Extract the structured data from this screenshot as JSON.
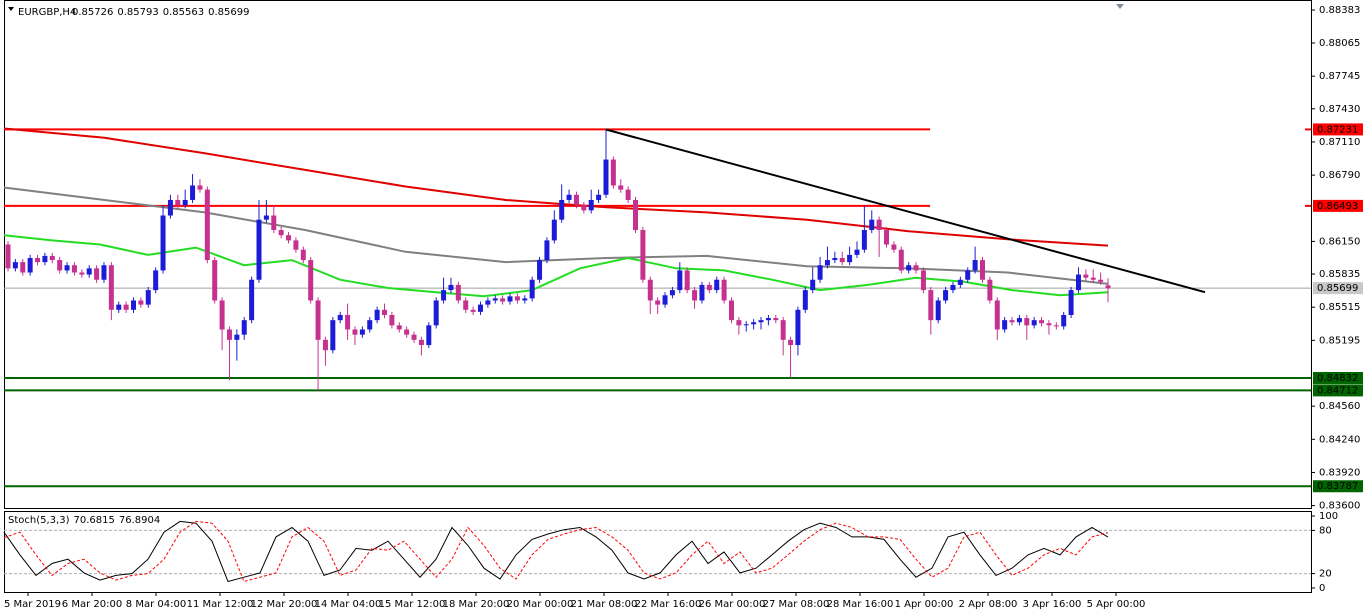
{
  "chart_data": {
    "type": "candlestick",
    "title": "EURGBP,H4",
    "up_color": "#1c1cd8",
    "down_color": "#c6318f",
    "ylim": [
      0.83577,
      0.8848
    ],
    "yticks": [
      0.88383,
      0.88065,
      0.87745,
      {
        "value": 0.8743,
        "label": "0.87430"
      },
      {
        "value": 0.8711,
        "label": "0.87110"
      },
      {
        "value": 0.8679,
        "label": "0.86790"
      },
      {
        "value": 0.8615,
        "label": "0.86150"
      },
      0.85835,
      0.85515,
      0.85195,
      {
        "value": 0.8456,
        "label": "0.84560"
      },
      {
        "value": 0.8424,
        "label": "0.84240"
      },
      {
        "value": 0.8392,
        "label": "0.83920"
      },
      {
        "value": 0.836,
        "label": "0.83600"
      }
    ],
    "categories": [
      "5 Mar 2019",
      "6 Mar 20:00",
      "8 Mar 04:00",
      "11 Mar 12:00",
      "12 Mar 20:00",
      "14 Mar 04:00",
      "15 Mar 12:00",
      "18 Mar 20:00",
      "20 Mar 00:00",
      "21 Mar 08:00",
      "22 Mar 16:00",
      "26 Mar 00:00",
      "27 Mar 08:00",
      "28 Mar 16:00",
      "1 Apr 00:00",
      "2 Apr 08:00",
      "3 Apr 16:00",
      "5 Apr 00:00"
    ],
    "ohlc": [
      [
        0.8612,
        0.8615,
        0.8586,
        0.8589
      ],
      [
        0.8589,
        0.8598,
        0.8586,
        0.8595
      ],
      [
        0.8595,
        0.8598,
        0.8582,
        0.8585
      ],
      [
        0.8585,
        0.8602,
        0.8582,
        0.8599
      ],
      [
        0.8599,
        0.8602,
        0.8592,
        0.8595
      ],
      [
        0.8595,
        0.8604,
        0.8592,
        0.8601
      ],
      [
        0.8601,
        0.8604,
        0.8594,
        0.8597
      ],
      [
        0.8597,
        0.86,
        0.8584,
        0.8587
      ],
      [
        0.8587,
        0.8595,
        0.8584,
        0.8592
      ],
      [
        0.8592,
        0.8595,
        0.8582,
        0.8585
      ],
      [
        0.8585,
        0.8588,
        0.858,
        0.8583
      ],
      [
        0.8583,
        0.8592,
        0.858,
        0.8589
      ],
      [
        0.8589,
        0.8592,
        0.8575,
        0.8578
      ],
      [
        0.8578,
        0.8595,
        0.8575,
        0.8592
      ],
      [
        0.8592,
        0.8595,
        0.8539,
        0.8549
      ],
      [
        0.8549,
        0.8557,
        0.8546,
        0.8554
      ],
      [
        0.8554,
        0.8557,
        0.8546,
        0.8549
      ],
      [
        0.8549,
        0.8561,
        0.8546,
        0.8558
      ],
      [
        0.8558,
        0.8561,
        0.8551,
        0.8554
      ],
      [
        0.8554,
        0.8571,
        0.8551,
        0.8568
      ],
      [
        0.8568,
        0.859,
        0.8565,
        0.8587
      ],
      [
        0.8587,
        0.865,
        0.8584,
        0.864
      ],
      [
        0.864,
        0.866,
        0.8637,
        0.8655
      ],
      [
        0.8655,
        0.866,
        0.8647,
        0.865
      ],
      [
        0.865,
        0.8665,
        0.8647,
        0.8655
      ],
      [
        0.8655,
        0.868,
        0.8652,
        0.8669
      ],
      [
        0.8669,
        0.8675,
        0.8662,
        0.8665
      ],
      [
        0.8665,
        0.8668,
        0.8594,
        0.8597
      ],
      [
        0.8597,
        0.86,
        0.8555,
        0.8558
      ],
      [
        0.8558,
        0.8561,
        0.851,
        0.853
      ],
      [
        0.853,
        0.8533,
        0.8481,
        0.852
      ],
      [
        0.852,
        0.853,
        0.85,
        0.8525
      ],
      [
        0.8525,
        0.8542,
        0.852,
        0.8539
      ],
      [
        0.8539,
        0.8581,
        0.8536,
        0.8578
      ],
      [
        0.8578,
        0.8655,
        0.8575,
        0.8636
      ],
      [
        0.8636,
        0.8655,
        0.8633,
        0.864
      ],
      [
        0.864,
        0.865,
        0.8623,
        0.8626
      ],
      [
        0.8626,
        0.8629,
        0.8618,
        0.8621
      ],
      [
        0.8621,
        0.8624,
        0.8613,
        0.8616
      ],
      [
        0.8616,
        0.8619,
        0.8604,
        0.8607
      ],
      [
        0.8607,
        0.861,
        0.8594,
        0.8597
      ],
      [
        0.8597,
        0.86,
        0.8555,
        0.8558
      ],
      [
        0.8558,
        0.8561,
        0.8471,
        0.852
      ],
      [
        0.852,
        0.8523,
        0.8495,
        0.851
      ],
      [
        0.851,
        0.8542,
        0.8507,
        0.8539
      ],
      [
        0.8539,
        0.8547,
        0.8536,
        0.8544
      ],
      [
        0.8544,
        0.8555,
        0.852,
        0.853
      ],
      [
        0.853,
        0.8533,
        0.8515,
        0.8525
      ],
      [
        0.8525,
        0.8533,
        0.8522,
        0.853
      ],
      [
        0.853,
        0.8542,
        0.8527,
        0.8539
      ],
      [
        0.8539,
        0.8552,
        0.8536,
        0.8549
      ],
      [
        0.8549,
        0.8555,
        0.8541,
        0.8544
      ],
      [
        0.8544,
        0.8547,
        0.8531,
        0.8534
      ],
      [
        0.8534,
        0.8537,
        0.8527,
        0.853
      ],
      [
        0.853,
        0.8533,
        0.8522,
        0.8525
      ],
      [
        0.8525,
        0.8528,
        0.8517,
        0.852
      ],
      [
        0.852,
        0.8523,
        0.8505,
        0.8515
      ],
      [
        0.8515,
        0.8537,
        0.8512,
        0.8534
      ],
      [
        0.8534,
        0.8561,
        0.8531,
        0.8558
      ],
      [
        0.8558,
        0.858,
        0.8555,
        0.8568
      ],
      [
        0.8568,
        0.858,
        0.8565,
        0.8573
      ],
      [
        0.8573,
        0.8576,
        0.8555,
        0.8558
      ],
      [
        0.8558,
        0.8561,
        0.8546,
        0.8549
      ],
      [
        0.8549,
        0.8552,
        0.8544,
        0.8547
      ],
      [
        0.8547,
        0.8557,
        0.8544,
        0.8554
      ],
      [
        0.8554,
        0.8561,
        0.8551,
        0.8558
      ],
      [
        0.8558,
        0.8563,
        0.8555,
        0.856
      ],
      [
        0.856,
        0.8563,
        0.8554,
        0.8557
      ],
      [
        0.8557,
        0.8565,
        0.8554,
        0.8562
      ],
      [
        0.8562,
        0.8565,
        0.8555,
        0.8558
      ],
      [
        0.8558,
        0.8563,
        0.8555,
        0.856
      ],
      [
        0.856,
        0.8581,
        0.8557,
        0.8578
      ],
      [
        0.8578,
        0.86,
        0.8575,
        0.8597
      ],
      [
        0.8597,
        0.8619,
        0.8594,
        0.8616
      ],
      [
        0.8616,
        0.8645,
        0.8613,
        0.8636
      ],
      [
        0.8636,
        0.867,
        0.8633,
        0.8655
      ],
      [
        0.8655,
        0.8665,
        0.8652,
        0.866
      ],
      [
        0.866,
        0.8663,
        0.8647,
        0.865
      ],
      [
        0.865,
        0.8653,
        0.8642,
        0.8645
      ],
      [
        0.8645,
        0.8665,
        0.8642,
        0.8655
      ],
      [
        0.8655,
        0.8665,
        0.8652,
        0.866
      ],
      [
        0.866,
        0.8723,
        0.8657,
        0.8694
      ],
      [
        0.8694,
        0.8697,
        0.8666,
        0.8669
      ],
      [
        0.8669,
        0.8675,
        0.8662,
        0.8665
      ],
      [
        0.8665,
        0.8668,
        0.8652,
        0.8655
      ],
      [
        0.8655,
        0.8658,
        0.8623,
        0.8626
      ],
      [
        0.8626,
        0.8629,
        0.8575,
        0.8578
      ],
      [
        0.8578,
        0.8581,
        0.8545,
        0.8558
      ],
      [
        0.8558,
        0.8561,
        0.8545,
        0.8554
      ],
      [
        0.8554,
        0.8566,
        0.8551,
        0.8563
      ],
      [
        0.8563,
        0.8571,
        0.856,
        0.8568
      ],
      [
        0.8568,
        0.8595,
        0.8565,
        0.8587
      ],
      [
        0.8587,
        0.859,
        0.8565,
        0.8568
      ],
      [
        0.8568,
        0.8571,
        0.855,
        0.8558
      ],
      [
        0.8558,
        0.8576,
        0.8555,
        0.8573
      ],
      [
        0.8573,
        0.8576,
        0.8565,
        0.8568
      ],
      [
        0.8568,
        0.8581,
        0.8565,
        0.8578
      ],
      [
        0.8578,
        0.8581,
        0.8555,
        0.8558
      ],
      [
        0.8558,
        0.8561,
        0.8536,
        0.8539
      ],
      [
        0.8539,
        0.8542,
        0.8525,
        0.8534
      ],
      [
        0.8534,
        0.8538,
        0.8528,
        0.8535
      ],
      [
        0.8535,
        0.854,
        0.853,
        0.8537
      ],
      [
        0.8537,
        0.8542,
        0.853,
        0.8539
      ],
      [
        0.8539,
        0.8544,
        0.8534,
        0.8541
      ],
      [
        0.8541,
        0.8544,
        0.8536,
        0.8539
      ],
      [
        0.8539,
        0.8542,
        0.8505,
        0.852
      ],
      [
        0.852,
        0.8523,
        0.8483,
        0.8515
      ],
      [
        0.8515,
        0.8552,
        0.8505,
        0.8549
      ],
      [
        0.8549,
        0.8571,
        0.8546,
        0.8568
      ],
      [
        0.8568,
        0.859,
        0.8565,
        0.8578
      ],
      [
        0.8578,
        0.86,
        0.8575,
        0.8592
      ],
      [
        0.8592,
        0.861,
        0.8589,
        0.8597
      ],
      [
        0.8597,
        0.8605,
        0.8594,
        0.8599
      ],
      [
        0.8599,
        0.8605,
        0.8592,
        0.8595
      ],
      [
        0.8595,
        0.861,
        0.8592,
        0.8602
      ],
      [
        0.8602,
        0.8615,
        0.8599,
        0.8607
      ],
      [
        0.8607,
        0.865,
        0.8604,
        0.8626
      ],
      [
        0.8626,
        0.8645,
        0.8623,
        0.8636
      ],
      [
        0.8636,
        0.8639,
        0.86,
        0.8626
      ],
      [
        0.8626,
        0.8629,
        0.8609,
        0.8612
      ],
      [
        0.8612,
        0.8615,
        0.8604,
        0.8607
      ],
      [
        0.8607,
        0.861,
        0.8584,
        0.8587
      ],
      [
        0.8587,
        0.8595,
        0.8584,
        0.8592
      ],
      [
        0.8592,
        0.8595,
        0.8584,
        0.8587
      ],
      [
        0.8587,
        0.859,
        0.8565,
        0.8568
      ],
      [
        0.8568,
        0.8571,
        0.8525,
        0.8539
      ],
      [
        0.8539,
        0.8561,
        0.8536,
        0.8558
      ],
      [
        0.8558,
        0.8571,
        0.8555,
        0.8568
      ],
      [
        0.8568,
        0.8576,
        0.8565,
        0.8573
      ],
      [
        0.8573,
        0.8581,
        0.857,
        0.8578
      ],
      [
        0.8578,
        0.859,
        0.8575,
        0.8587
      ],
      [
        0.8587,
        0.861,
        0.8584,
        0.8597
      ],
      [
        0.8597,
        0.86,
        0.8575,
        0.8578
      ],
      [
        0.8578,
        0.8581,
        0.8555,
        0.8558
      ],
      [
        0.8558,
        0.8561,
        0.852,
        0.853
      ],
      [
        0.853,
        0.8542,
        0.8527,
        0.8539
      ],
      [
        0.8539,
        0.8542,
        0.8534,
        0.8537
      ],
      [
        0.8537,
        0.8544,
        0.8534,
        0.8541
      ],
      [
        0.8541,
        0.8544,
        0.852,
        0.8534
      ],
      [
        0.8534,
        0.8542,
        0.8531,
        0.8539
      ],
      [
        0.8539,
        0.8542,
        0.8533,
        0.8536
      ],
      [
        0.8536,
        0.8539,
        0.8525,
        0.8534
      ],
      [
        0.8534,
        0.8537,
        0.853,
        0.8533
      ],
      [
        0.8533,
        0.8547,
        0.853,
        0.8544
      ],
      [
        0.8544,
        0.8571,
        0.8541,
        0.8568
      ],
      [
        0.8568,
        0.859,
        0.8565,
        0.8583
      ],
      [
        0.8583,
        0.8588,
        0.8577,
        0.858
      ],
      [
        0.858,
        0.8588,
        0.8575,
        0.8578
      ],
      [
        0.8578,
        0.8585,
        0.8573,
        0.8576
      ],
      [
        0.85726,
        0.85793,
        0.85563,
        0.85699
      ]
    ],
    "moving_averages": [
      {
        "color": "#e00000",
        "values": [
          0.8724,
          0.8715,
          0.87,
          0.8684,
          0.8668,
          0.8655,
          0.8648,
          0.8643,
          0.8636,
          0.8625,
          0.8617,
          0.8611
        ]
      },
      {
        "color": "#808080",
        "values": [
          0.8667,
          0.8655,
          0.8643,
          0.8626,
          0.8605,
          0.8595,
          0.8599,
          0.8601,
          0.8591,
          0.8589,
          0.8585,
          0.8574
        ]
      },
      {
        "color": "#22dd22",
        "values": [
          0.8621,
          0.8616,
          0.8612,
          0.8602,
          0.8609,
          0.8592,
          0.8597,
          0.8578,
          0.857,
          0.8566,
          0.8562,
          0.8568,
          0.8589,
          0.8599,
          0.8589,
          0.8587,
          0.8578,
          0.8568,
          0.8573,
          0.858,
          0.8576,
          0.8568,
          0.8563,
          0.8566
        ]
      }
    ],
    "levels": [
      {
        "value": 0.87231,
        "color": "#ff0000",
        "span": "left"
      },
      {
        "value": 0.86493,
        "color": "#ff0000",
        "span": "left"
      },
      {
        "value": 0.85699,
        "color": "#a0a0a0",
        "span": "full"
      },
      {
        "value": 0.84832,
        "color": "#006400",
        "span": "full"
      },
      {
        "value": 0.84712,
        "color": "#006400",
        "span": "full"
      },
      {
        "value": 0.83787,
        "color": "#006400",
        "span": "full"
      }
    ],
    "trendline": {
      "from": 0.8723,
      "to": 0.8566,
      "color": "#000000"
    },
    "indicator": {
      "name": "Stoch(5,3,3)",
      "ylim": [
        0,
        100
      ],
      "yticks": [
        100,
        80,
        20,
        0
      ],
      "main_color": "#000000",
      "signal_color": "#ff0000",
      "main": [
        77.5,
        46,
        17.5,
        34,
        40,
        21,
        11,
        17.5,
        20,
        40,
        77.5,
        92.5,
        90,
        65,
        9,
        15,
        21,
        71,
        84,
        65,
        17.5,
        25,
        55,
        52.5,
        65,
        40,
        15,
        40,
        84,
        59,
        27.5,
        12.5,
        46,
        67.5,
        75,
        81,
        84,
        71,
        52.5,
        21,
        12.5,
        21,
        46,
        65,
        34,
        50,
        21,
        27.5,
        46,
        65,
        81,
        90,
        84,
        71,
        71,
        67.5,
        40,
        15,
        27.5,
        71,
        77.5,
        46,
        17.5,
        27.5,
        46,
        55,
        46,
        71,
        84,
        70.6815
      ],
      "signal": [
        70,
        77.5,
        46,
        17.5,
        34,
        40,
        21,
        11,
        17.5,
        20,
        40,
        77.5,
        92.5,
        90,
        65,
        9,
        15,
        21,
        71,
        84,
        65,
        17.5,
        25,
        55,
        52.5,
        65,
        40,
        15,
        40,
        84,
        59,
        27.5,
        12.5,
        46,
        67.5,
        75,
        81,
        84,
        71,
        52.5,
        21,
        12.5,
        21,
        46,
        65,
        34,
        50,
        21,
        27.5,
        46,
        65,
        81,
        90,
        84,
        71,
        71,
        67.5,
        40,
        15,
        27.5,
        71,
        77.5,
        46,
        17.5,
        27.5,
        46,
        55,
        46,
        71,
        76.8904
      ]
    }
  }
}
